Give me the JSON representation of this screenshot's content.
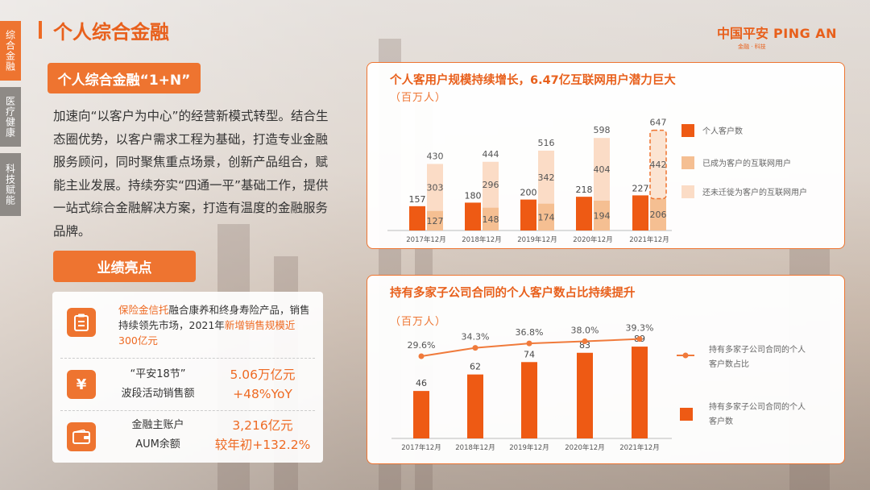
{
  "side_tabs": [
    "综合金融",
    "医疗健康",
    "科技赋能"
  ],
  "page_title": "个人综合金融",
  "logo": {
    "main": "中国平安",
    "en": "PING AN",
    "sub": "金融 · 科技"
  },
  "section1": {
    "pill": "个人综合金融“1+N”",
    "body": "加速向“以客户为中心”的经营新模式转型。结合生态圈优势，以客户需求工程为基础，打造专业金融服务顾问，同时聚焦重点场景，创新产品组合，赋能主业发展。持续夯实“四通一平”基础工作，提供一站式综合金融解决方案，打造有温度的金融服务品牌。"
  },
  "section2": {
    "pill": "业绩亮点",
    "item1": {
      "a": "保险金信托",
      "b": "融合康养和终身寿险产品，销售持续领先市场，2021年",
      "c": "新增销售规模近300亿元"
    },
    "item2": {
      "label1": "“平安18节”",
      "label2": "波段活动销售额",
      "value1": "5.06万亿元",
      "value2": "+48%YoY"
    },
    "item3": {
      "label1": "金融主账户",
      "label2": "AUM余额",
      "value1": "3,216亿元",
      "value2": "较年初+132.2%"
    }
  },
  "icons": {
    "item1": "clipboard-icon",
    "item2": "yen-icon",
    "item3": "wallet-icon"
  },
  "chart1_title": "个人客用户规模持续增长，6.47亿互联网用户潜力巨大",
  "chart1_unit": "（百万人）",
  "chart2_title": "持有多家子公司合同的个人客户数占比持续提升",
  "chart2_unit": "（百万人）",
  "colors": {
    "accent": "#ee7430",
    "dark_orange": "#ee5a14",
    "mid": "#f5bf92",
    "light": "#fbdcc6",
    "line": "#f07a3b"
  },
  "chart_data": [
    {
      "type": "bar",
      "categories": [
        "2017年12月",
        "2018年12月",
        "2019年12月",
        "2020年12月",
        "2021年12月"
      ],
      "series": [
        {
          "name": "个人客户数",
          "values": [
            157,
            180,
            200,
            218,
            227
          ]
        },
        {
          "name": "已成为客户的互联网用户",
          "values": [
            127,
            148,
            174,
            194,
            206
          ]
        },
        {
          "name": "还未迁徙为客户的互联网用户",
          "values": [
            303,
            296,
            342,
            404,
            442
          ]
        }
      ],
      "totals": [
        430,
        444,
        516,
        598,
        647
      ],
      "legend": "right"
    },
    {
      "type": "bar",
      "categories": [
        "2017年12月",
        "2018年12月",
        "2019年12月",
        "2020年12月",
        "2021年12月"
      ],
      "series": [
        {
          "name": "持有多家子公司合同的个人客户数占比",
          "values": [
            29.6,
            34.3,
            36.8,
            38.0,
            39.3
          ],
          "kind": "line",
          "labels": [
            "29.6%",
            "34.3%",
            "36.8%",
            "38.0%",
            "39.3%"
          ]
        },
        {
          "name": "持有多家子公司合同的个人客户数",
          "values": [
            46,
            62,
            74,
            83,
            89
          ],
          "kind": "bar"
        }
      ],
      "legend": "right"
    }
  ]
}
